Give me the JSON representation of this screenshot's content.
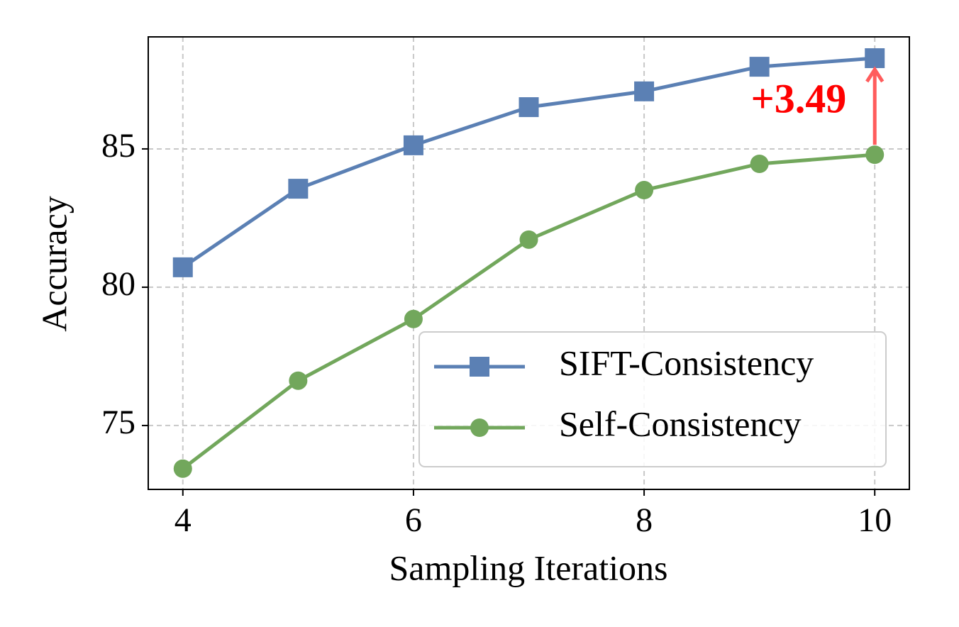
{
  "chart_data": {
    "type": "line",
    "x_label": "Sampling Iterations",
    "y_label": "Accuracy",
    "x": [
      4,
      5,
      6,
      7,
      8,
      9,
      10
    ],
    "series": [
      {
        "name": "SIFT-Consistency",
        "color": "#5b80b4",
        "marker": "square",
        "values": [
          80.72,
          83.56,
          85.13,
          86.51,
          87.08,
          87.97,
          88.28
        ]
      },
      {
        "name": "Self-Consistency",
        "color": "#72a75c",
        "marker": "circle",
        "values": [
          73.44,
          76.62,
          78.85,
          81.72,
          83.51,
          84.46,
          84.79
        ]
      }
    ],
    "annotation": "+3.49",
    "annotation_color": "#ff5c5c",
    "xlim": [
      3.7,
      10.3
    ],
    "ylim": [
      72.69,
      89.05
    ],
    "xticks": [
      4,
      6,
      8,
      10
    ],
    "yticks": [
      75,
      80,
      85
    ],
    "grid": true,
    "legend": "lower right"
  }
}
